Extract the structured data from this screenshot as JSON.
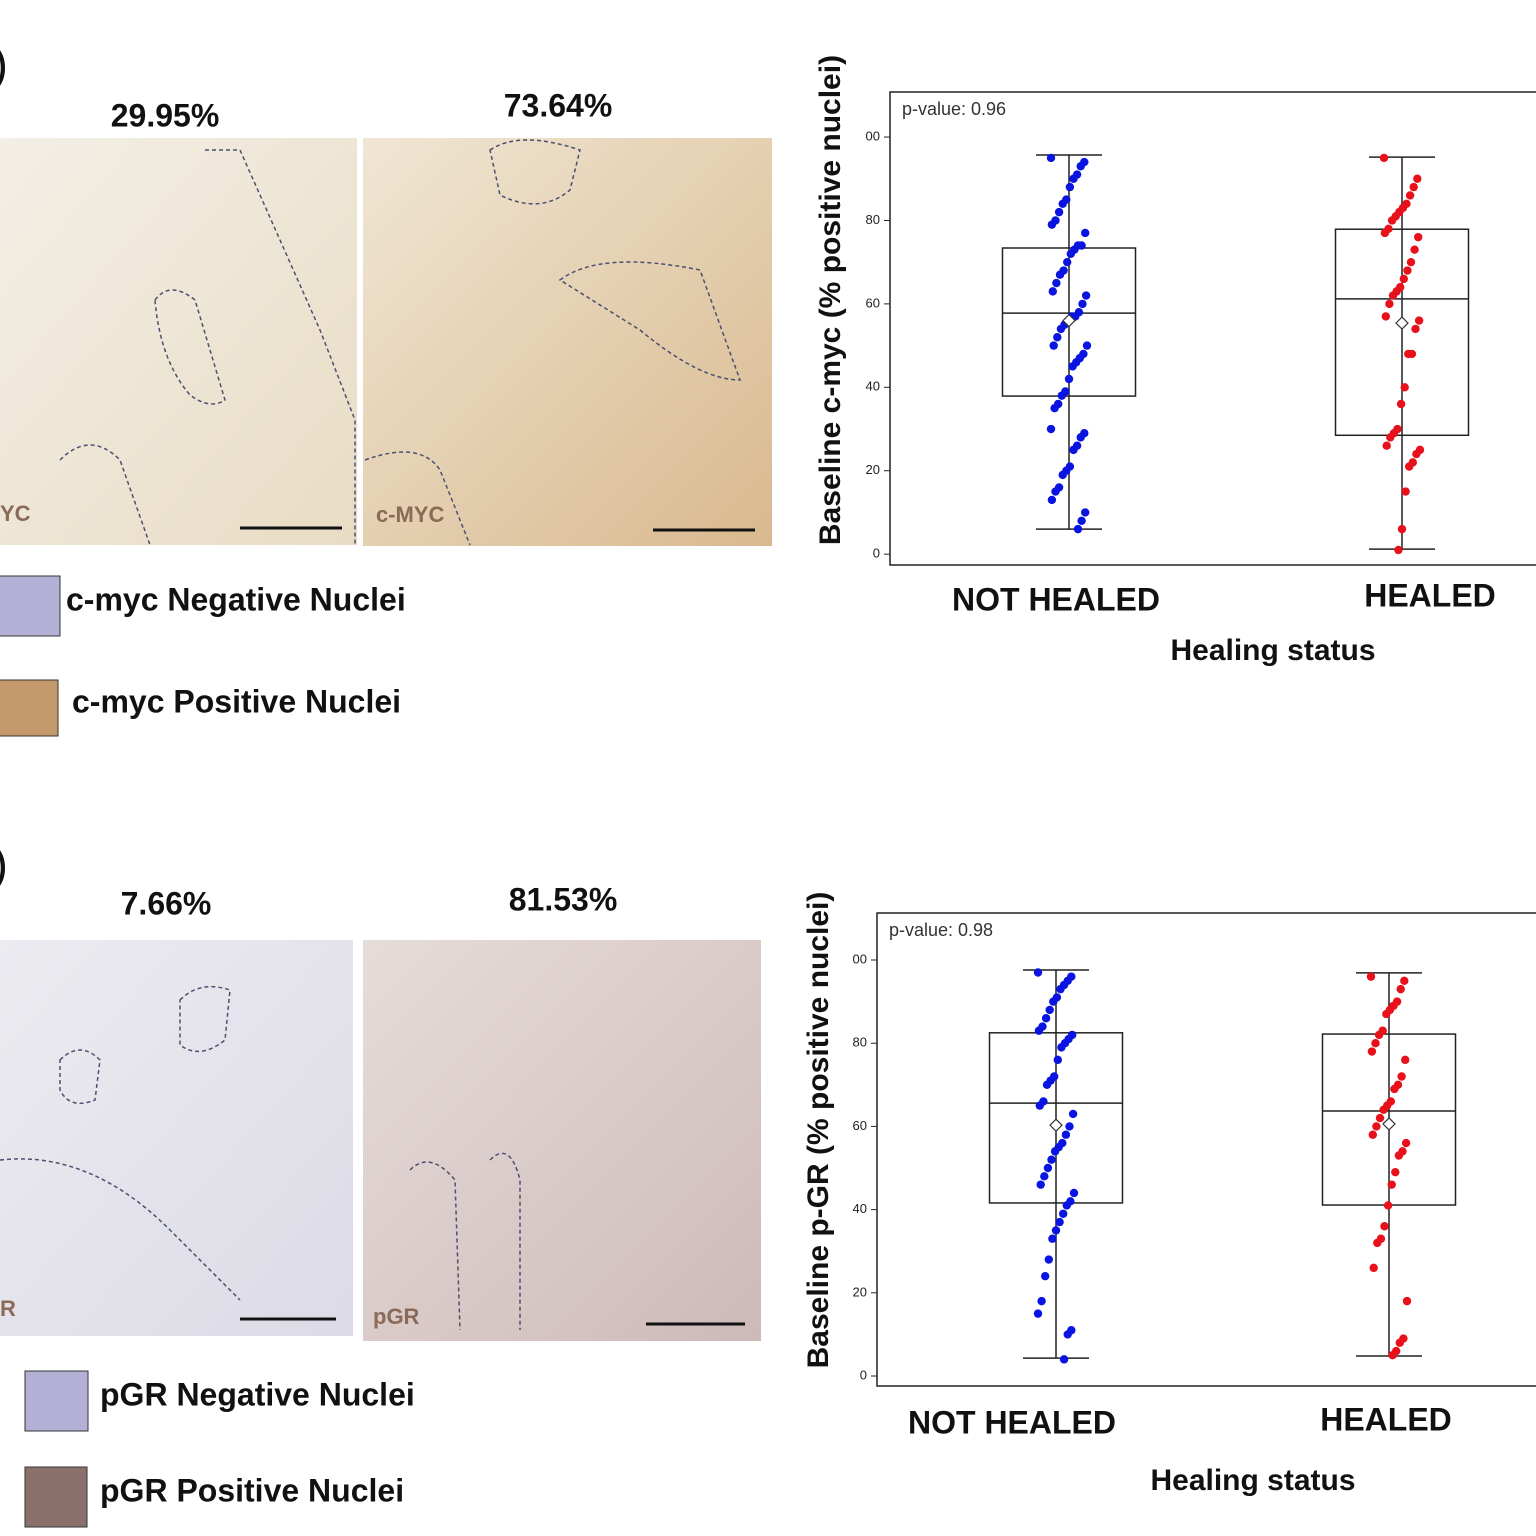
{
  "panels": [
    {
      "label": ")",
      "images": [
        {
          "percent": "29.95%",
          "stain_label": "YC"
        },
        {
          "percent": "73.64%",
          "stain_label": "c-MYC"
        }
      ],
      "legend": [
        "c-myc Negative Nuclei",
        "c-myc Positive Nuclei"
      ]
    },
    {
      "label": ")",
      "images": [
        {
          "percent": "7.66%",
          "stain_label": "R"
        },
        {
          "percent": "81.53%",
          "stain_label": "pGR"
        }
      ],
      "legend": [
        "pGR Negative Nuclei",
        "pGR Positive Nuclei"
      ]
    }
  ],
  "chart_data": [
    {
      "type": "box",
      "annotation": "p-value: 0.96",
      "xlabel": "Healing status",
      "ylabel": "Baseline c-myc (% positive nuclei)",
      "categories": [
        "NOT HEALED",
        "HEALED"
      ],
      "ylim": [
        -2.6,
        110.8
      ],
      "yticks": [
        0,
        20,
        40,
        60,
        {
          "value": 80,
          "label": "80"
        },
        {
          "value": 100,
          "label": "00"
        }
      ],
      "boxes": [
        {
          "color": "#0a14e0",
          "whisker_low": 6,
          "q1": 37.9,
          "median": 57.8,
          "q3": 73.4,
          "whisker_high": 95.7,
          "mean": 56,
          "points": [
            95,
            94,
            93,
            91,
            90,
            88,
            85,
            84,
            82,
            80,
            79,
            77,
            74,
            74,
            73,
            72,
            70,
            68,
            67,
            65,
            63,
            62,
            60,
            58,
            57,
            57,
            56,
            55,
            54,
            52,
            50,
            50,
            48,
            47,
            46,
            45,
            42,
            39,
            38,
            36,
            35,
            30,
            29,
            28,
            26,
            25,
            21,
            20,
            19,
            16,
            15,
            13,
            10,
            8,
            6
          ]
        },
        {
          "color": "#e8101a",
          "whisker_low": 1.2,
          "q1": 28.5,
          "median": 61.2,
          "q3": 77.9,
          "whisker_high": 95.2,
          "mean": 55.4,
          "points": [
            95,
            90,
            88,
            86,
            84,
            83,
            82,
            81,
            80,
            78,
            77,
            76,
            73,
            70,
            68,
            66,
            64,
            63,
            62,
            60,
            57,
            56,
            54,
            48,
            48,
            40,
            36,
            30,
            29,
            28,
            26,
            25,
            24,
            22,
            21,
            15,
            6,
            1
          ]
        }
      ]
    },
    {
      "type": "box",
      "annotation": "p-value: 0.98",
      "xlabel": "Healing status",
      "ylabel": "Baseline p-GR (% positive nuclei)",
      "categories": [
        "NOT HEALED",
        "HEALED"
      ],
      "ylim": [
        -2.4,
        111.3
      ],
      "yticks": [
        0,
        20,
        40,
        60,
        80,
        {
          "value": 100,
          "label": "00"
        }
      ],
      "boxes": [
        {
          "color": "#0a14e0",
          "whisker_low": 4.3,
          "q1": 41.6,
          "median": 65.6,
          "q3": 82.5,
          "whisker_high": 97.6,
          "mean": 60.3,
          "points": [
            97,
            96,
            95,
            94,
            93,
            91,
            90,
            88,
            86,
            84,
            83,
            82,
            81,
            80,
            79,
            76,
            72,
            71,
            70,
            66,
            65,
            63,
            60,
            58,
            56,
            55,
            54,
            52,
            50,
            48,
            46,
            44,
            42,
            41,
            39,
            37,
            35,
            33,
            28,
            24,
            18,
            15,
            11,
            10,
            4
          ]
        },
        {
          "color": "#e8101a",
          "whisker_low": 4.8,
          "q1": 41.1,
          "median": 63.7,
          "q3": 82.2,
          "whisker_high": 96.9,
          "mean": 60.6,
          "points": [
            96,
            95,
            93,
            90,
            89,
            88,
            87,
            83,
            82,
            80,
            78,
            76,
            72,
            70,
            69,
            66,
            65,
            64,
            62,
            60,
            58,
            56,
            54,
            53,
            49,
            46,
            41,
            36,
            33,
            32,
            26,
            18,
            9,
            8,
            6,
            5
          ]
        }
      ]
    }
  ]
}
